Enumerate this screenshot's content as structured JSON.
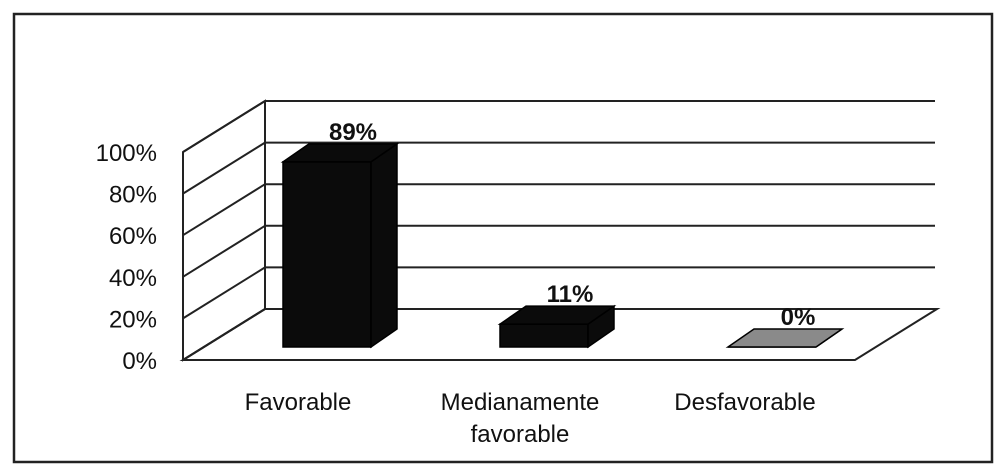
{
  "chart_data": {
    "type": "bar",
    "style": "3d",
    "categories": [
      "Favorable",
      "Medianamente favorable",
      "Desfavorable"
    ],
    "category_label_lines": [
      [
        "Favorable"
      ],
      [
        "Medianamente",
        "favorable"
      ],
      [
        "Desfavorable"
      ]
    ],
    "values": [
      89,
      11,
      0
    ],
    "data_labels": [
      "89%",
      "11%",
      "0%"
    ],
    "ylim": [
      0,
      100
    ],
    "yticks": [
      0,
      20,
      40,
      60,
      80,
      100
    ],
    "ytick_labels": [
      "0%",
      "20%",
      "40%",
      "60%",
      "80%",
      "100%"
    ],
    "title": "",
    "xlabel": "",
    "ylabel": "",
    "grid": true,
    "legend": "none",
    "bar_colors": [
      "#0b0b0b",
      "#0b0b0b",
      "#8a8a8a"
    ]
  }
}
